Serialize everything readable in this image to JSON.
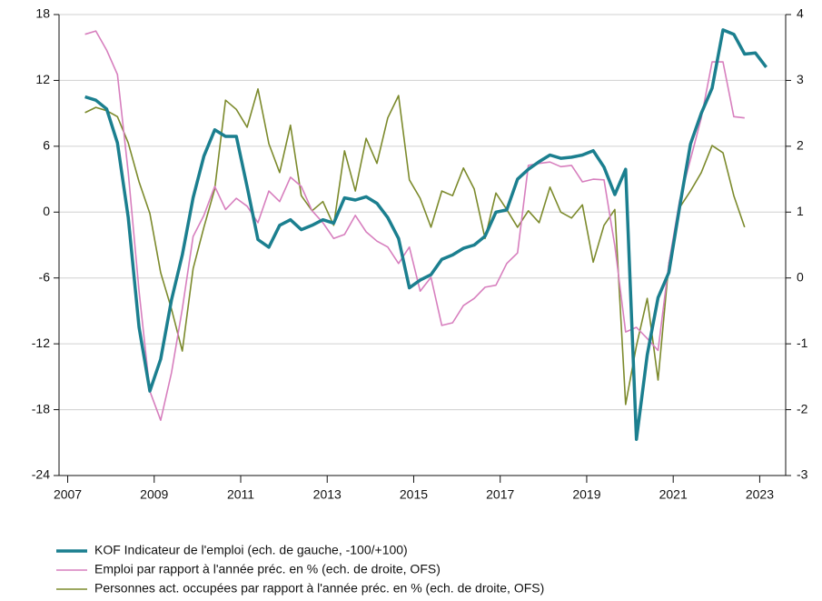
{
  "chart_data": {
    "type": "line",
    "x": [
      2007.4,
      2007.65,
      2007.9,
      2008.15,
      2008.4,
      2008.65,
      2008.9,
      2009.15,
      2009.4,
      2009.65,
      2009.9,
      2010.15,
      2010.4,
      2010.65,
      2010.9,
      2011.15,
      2011.4,
      2011.65,
      2011.9,
      2012.15,
      2012.4,
      2012.65,
      2012.9,
      2013.15,
      2013.4,
      2013.65,
      2013.9,
      2014.15,
      2014.4,
      2014.65,
      2014.9,
      2015.15,
      2015.4,
      2015.65,
      2015.9,
      2016.15,
      2016.4,
      2016.65,
      2016.9,
      2017.15,
      2017.4,
      2017.65,
      2017.9,
      2018.15,
      2018.4,
      2018.65,
      2018.9,
      2019.15,
      2019.4,
      2019.65,
      2019.9,
      2020.15,
      2020.4,
      2020.65,
      2020.9,
      2021.15,
      2021.4,
      2021.65,
      2021.9,
      2022.15,
      2022.4,
      2022.65,
      2022.9,
      2023.15
    ],
    "series": [
      {
        "name": "KOF Indicateur de l'emploi (ech. de gauche, -100/+100)",
        "color": "#1b7f8f",
        "axis": "y",
        "values": [
          10.5,
          10.2,
          9.4,
          6.3,
          -0.5,
          -10.5,
          -16.3,
          -13.4,
          -8,
          -3.9,
          1.3,
          5.1,
          7.5,
          6.9,
          6.9,
          2.3,
          -2.5,
          -3.2,
          -1.2,
          -0.7,
          -1.6,
          -1.2,
          -0.7,
          -1.0,
          1.3,
          1.1,
          1.4,
          0.8,
          -0.5,
          -2.4,
          -6.9,
          -6.2,
          -5.7,
          -4.3,
          -3.9,
          -3.3,
          -3.0,
          -2.2,
          0.0,
          0.2,
          3.0,
          3.9,
          4.6,
          5.2,
          4.9,
          5.0,
          5.2,
          5.6,
          4.1,
          1.6,
          3.9,
          -20.7,
          -13,
          -7.8,
          -5.5,
          0.5,
          6.2,
          9.0,
          11.3,
          16.6,
          16.2,
          14.4,
          14.5,
          13.2
        ]
      },
      {
        "name": "Emploi par rapport à l'année préc. en % (ech. de droite, OFS)",
        "color": "#d77fbe",
        "axis": "y2",
        "values": [
          3.7,
          3.75,
          3.46,
          3.09,
          1.6,
          -0.2,
          -1.72,
          -2.16,
          -1.44,
          -0.47,
          0.63,
          0.95,
          1.39,
          1.04,
          1.21,
          1.09,
          0.84,
          1.32,
          1.16,
          1.53,
          1.39,
          1.02,
          0.84,
          0.6,
          0.66,
          0.95,
          0.7,
          0.56,
          0.47,
          0.22,
          0.47,
          -0.2,
          0.01,
          -0.72,
          -0.68,
          -0.42,
          -0.31,
          -0.14,
          -0.11,
          0.22,
          0.38,
          1.71,
          1.74,
          1.76,
          1.69,
          1.71,
          1.46,
          1.5,
          1.49,
          0.49,
          -0.82,
          -0.75,
          -0.92,
          -1.1,
          0.22,
          1.18,
          1.8,
          2.43,
          3.28,
          3.28,
          2.45,
          2.43,
          null,
          null
        ]
      },
      {
        "name": "Personnes act. occupées par rapport à l'année préc. en % (ech. de droite, OFS)",
        "color": "#7c8a2c",
        "axis": "y2",
        "values": [
          2.51,
          2.59,
          2.54,
          2.45,
          2.05,
          1.46,
          0.98,
          0.08,
          -0.47,
          -1.11,
          0.14,
          0.77,
          1.35,
          2.7,
          2.56,
          2.29,
          2.87,
          2.04,
          1.6,
          2.32,
          1.25,
          1.02,
          1.16,
          0.8,
          1.93,
          1.32,
          2.12,
          1.74,
          2.43,
          2.77,
          1.49,
          1.21,
          0.77,
          1.32,
          1.25,
          1.67,
          1.35,
          0.6,
          1.29,
          1.04,
          0.77,
          1.02,
          0.84,
          1.38,
          1.0,
          0.91,
          1.11,
          0.24,
          0.8,
          1.04,
          -1.92,
          -1.03,
          -0.31,
          -1.55,
          0.22,
          1.07,
          1.32,
          1.6,
          2.01,
          1.9,
          1.25,
          0.77,
          null,
          null
        ]
      }
    ],
    "xlim": [
      2006.8,
      2023.6
    ],
    "xticks": [
      2007,
      2009,
      2011,
      2013,
      2015,
      2017,
      2019,
      2021,
      2023
    ],
    "ylim": [
      -24,
      18
    ],
    "yticks": [
      -24,
      -18,
      -12,
      -6,
      0,
      6,
      12,
      18
    ],
    "y2lim": [
      -3,
      4
    ],
    "y2ticks": [
      -3,
      -2,
      -1,
      0,
      1,
      2,
      3,
      4
    ],
    "grid": true
  }
}
